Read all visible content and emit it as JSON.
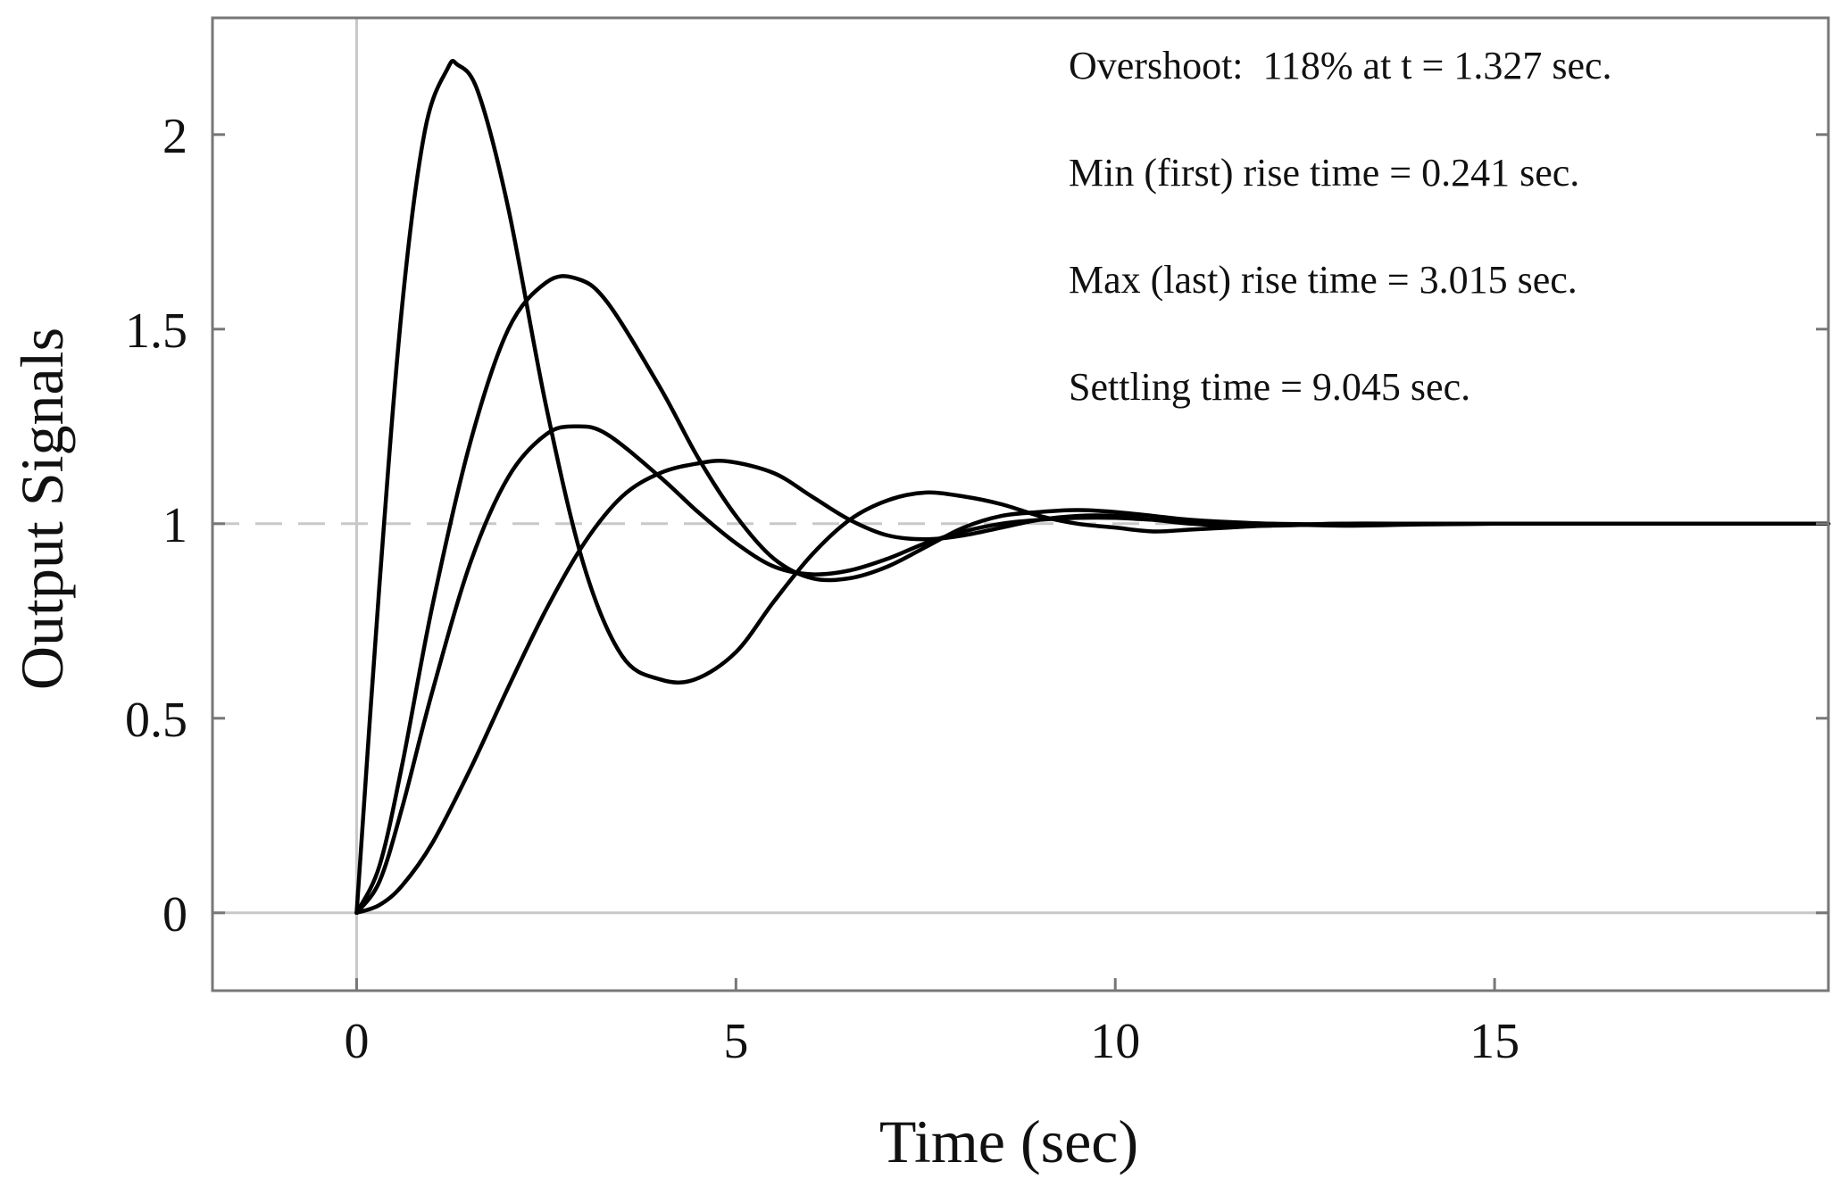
{
  "chart_data": {
    "type": "line",
    "title": "",
    "xlabel": "Time (sec)",
    "ylabel": "Output Signals",
    "xlim": [
      -1.9,
      19.4
    ],
    "ylim": [
      -0.2,
      2.3
    ],
    "xticks": [
      0,
      5,
      10,
      15
    ],
    "yticks": [
      0,
      0.5,
      1,
      1.5,
      2
    ],
    "xtick_labels": [
      "0",
      "5",
      "10",
      "15"
    ],
    "ytick_labels": [
      "0",
      "0.5",
      "1",
      "1.5",
      "2"
    ],
    "grid": false,
    "reference_lines": [
      {
        "axis": "y",
        "value": 1,
        "style": "dashed",
        "color": "#c8c8c8"
      },
      {
        "axis": "y",
        "value": 0,
        "style": "solid",
        "color": "#c8c8c8"
      },
      {
        "axis": "x",
        "value": 0,
        "style": "solid",
        "color": "#c8c8c8"
      }
    ],
    "annotations": [
      "Overshoot:  118% at t = 1.327 sec.",
      "Min (first) rise time = 0.241 sec.",
      "Max (last) rise time = 3.015 sec.",
      "Settling time = 9.045 sec."
    ],
    "series": [
      {
        "x": [
          0,
          0.3,
          0.6,
          0.9,
          1.2,
          1.327,
          1.6,
          2.0,
          2.5,
          3.0,
          3.5,
          4.0,
          4.46,
          5.0,
          5.5,
          6.0,
          6.5,
          7.0,
          7.5,
          8.0,
          8.5,
          9.0,
          9.5,
          10.0,
          10.5,
          11.0,
          11.5,
          12.0,
          13.0,
          14.0,
          15.0,
          16.0,
          17.0,
          18.0,
          19.4
        ],
        "y": [
          0,
          0.84,
          1.56,
          2.01,
          2.17,
          2.18,
          2.11,
          1.81,
          1.3,
          0.89,
          0.66,
          0.6,
          0.6,
          0.67,
          0.8,
          0.92,
          1.01,
          1.06,
          1.08,
          1.07,
          1.05,
          1.02,
          1.0,
          0.99,
          0.98,
          0.985,
          0.99,
          0.995,
          1.0,
          1.0,
          1.0,
          1.0,
          1.0,
          1.0,
          1.0
        ]
      },
      {
        "x": [
          0,
          0.3,
          0.6,
          1.0,
          1.5,
          2.0,
          2.5,
          2.9,
          3.3,
          4.0,
          4.5,
          5.0,
          5.5,
          6.0,
          6.5,
          7.0,
          7.5,
          8.0,
          8.5,
          9.0,
          9.5,
          10.0,
          10.5,
          11.0,
          12.0,
          13.0,
          14.0,
          15.0,
          16.0,
          17.0,
          18.0,
          19.4
        ],
        "y": [
          0,
          0.12,
          0.38,
          0.79,
          1.21,
          1.5,
          1.62,
          1.63,
          1.57,
          1.35,
          1.17,
          1.02,
          0.91,
          0.86,
          0.86,
          0.89,
          0.94,
          0.99,
          1.02,
          1.03,
          1.035,
          1.03,
          1.02,
          1.01,
          1.0,
          0.995,
          0.998,
          1.0,
          1.0,
          1.0,
          1.0,
          1.0
        ]
      },
      {
        "x": [
          0,
          0.3,
          0.6,
          1.0,
          1.5,
          2.0,
          2.5,
          2.9,
          3.3,
          4.0,
          4.5,
          5.0,
          5.5,
          6.0,
          6.5,
          7.0,
          7.5,
          8.0,
          8.5,
          9.0,
          9.5,
          10.0,
          10.5,
          11.0,
          12.0,
          13.0,
          14.0,
          15.0,
          16.0,
          17.0,
          18.0,
          19.4
        ],
        "y": [
          0,
          0.08,
          0.27,
          0.57,
          0.9,
          1.12,
          1.23,
          1.25,
          1.23,
          1.12,
          1.03,
          0.95,
          0.89,
          0.87,
          0.88,
          0.91,
          0.95,
          0.98,
          1.0,
          1.01,
          1.015,
          1.015,
          1.01,
          1.005,
          1.0,
          0.998,
          0.999,
          1.0,
          1.0,
          1.0,
          1.0,
          1.0
        ]
      },
      {
        "x": [
          0,
          0.3,
          0.6,
          1.0,
          1.5,
          2.0,
          2.5,
          3.0,
          3.5,
          4.0,
          4.5,
          4.9,
          5.5,
          6.0,
          6.5,
          7.0,
          7.5,
          8.0,
          8.5,
          9.0,
          9.5,
          10.0,
          10.5,
          11.0,
          11.5,
          12.0,
          12.5,
          13.0,
          14.0,
          15.0,
          16.0,
          17.0,
          18.0,
          19.4
        ],
        "y": [
          0,
          0.02,
          0.07,
          0.18,
          0.37,
          0.58,
          0.78,
          0.95,
          1.07,
          1.13,
          1.155,
          1.16,
          1.13,
          1.07,
          1.01,
          0.97,
          0.96,
          0.97,
          0.99,
          1.01,
          1.02,
          1.02,
          1.01,
          1.0,
          0.995,
          0.995,
          0.997,
          1.0,
          1.0,
          1.0,
          1.0,
          1.0,
          1.0,
          1.0
        ]
      }
    ]
  }
}
